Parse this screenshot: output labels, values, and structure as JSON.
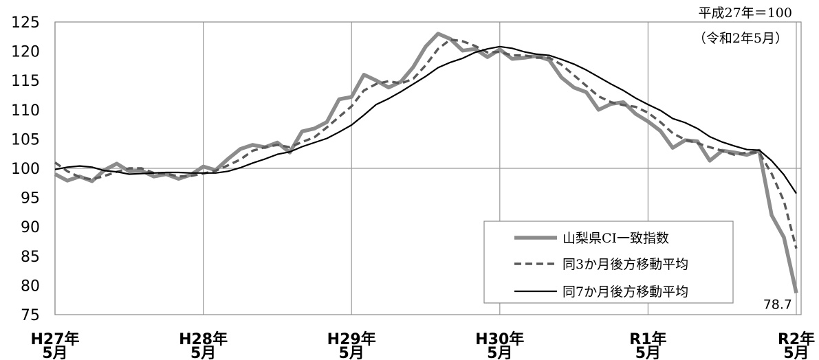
{
  "chart_data": {
    "type": "line",
    "x": [
      "H27年5月",
      "H27年6月",
      "H27年7月",
      "H27年8月",
      "H27年9月",
      "H27年10月",
      "H27年11月",
      "H27年12月",
      "H28年1月",
      "H28年2月",
      "H28年3月",
      "H28年4月",
      "H28年5月",
      "H28年6月",
      "H28年7月",
      "H28年8月",
      "H28年9月",
      "H28年10月",
      "H28年11月",
      "H28年12月",
      "H29年1月",
      "H29年2月",
      "H29年3月",
      "H29年4月",
      "H29年5月",
      "H29年6月",
      "H29年7月",
      "H29年8月",
      "H29年9月",
      "H29年10月",
      "H29年11月",
      "H29年12月",
      "H30年1月",
      "H30年2月",
      "H30年3月",
      "H30年4月",
      "H30年5月",
      "H30年6月",
      "H30年7月",
      "H30年8月",
      "H30年9月",
      "H30年10月",
      "H30年11月",
      "H30年12月",
      "H31年1月",
      "H31年2月",
      "H31年3月",
      "H31年4月",
      "R1年5月",
      "R1年6月",
      "R1年7月",
      "R1年8月",
      "R1年9月",
      "R1年10月",
      "R1年11月",
      "R1年12月",
      "R2年1月",
      "R2年2月",
      "R2年3月",
      "R2年4月",
      "R2年5月"
    ],
    "series": [
      {
        "name": "山梨県CI一致指数",
        "color": "#8c8c8c",
        "line_style": "solid",
        "values": [
          99.0,
          97.9,
          98.6,
          97.8,
          99.7,
          100.8,
          99.5,
          99.6,
          98.6,
          99.0,
          98.2,
          98.9,
          100.3,
          99.7,
          101.6,
          103.3,
          104.0,
          103.6,
          104.4,
          102.7,
          106.3,
          106.8,
          107.9,
          111.8,
          112.2,
          116.0,
          115.0,
          113.8,
          114.8,
          117.3,
          120.8,
          123.0,
          122.1,
          120.1,
          120.4,
          119.0,
          120.3,
          118.7,
          118.9,
          119.2,
          118.5,
          115.5,
          113.8,
          113.0,
          110.0,
          111.0,
          111.3,
          109.3,
          108.0,
          106.4,
          103.5,
          104.8,
          104.6,
          101.3,
          103.0,
          102.7,
          102.3,
          103.0,
          92.0,
          88.2,
          78.7
        ]
      },
      {
        "name": "同3か月後方移動平均",
        "color": "#595959",
        "line_style": "dashed",
        "values": [
          101.0,
          99.5,
          98.5,
          98.1,
          98.7,
          99.4,
          100.0,
          100.0,
          99.2,
          99.1,
          98.6,
          98.7,
          99.1,
          99.6,
          100.5,
          101.5,
          103.0,
          103.6,
          104.0,
          103.6,
          104.5,
          105.3,
          107.0,
          108.8,
          110.6,
          113.3,
          114.4,
          114.9,
          114.5,
          115.3,
          117.6,
          120.4,
          122.0,
          121.7,
          120.9,
          119.8,
          119.9,
          119.3,
          119.3,
          118.9,
          118.9,
          117.7,
          115.9,
          114.1,
          112.3,
          111.3,
          110.8,
          110.5,
          109.5,
          107.9,
          106.0,
          104.9,
          104.3,
          103.6,
          103.0,
          102.3,
          102.7,
          102.7,
          99.1,
          94.4,
          86.3
        ]
      },
      {
        "name": "同7か月後方移動平均",
        "color": "#000000",
        "line_style": "solid",
        "values": [
          99.8,
          100.2,
          100.4,
          100.2,
          99.6,
          99.4,
          99.0,
          99.1,
          99.2,
          99.3,
          99.3,
          99.2,
          99.2,
          99.2,
          99.5,
          100.1,
          100.9,
          101.6,
          102.4,
          102.8,
          103.7,
          104.4,
          105.1,
          106.2,
          107.4,
          109.1,
          110.9,
          111.9,
          113.1,
          114.4,
          115.7,
          117.2,
          118.1,
          118.8,
          119.8,
          120.4,
          120.8,
          120.5,
          119.9,
          119.5,
          119.3,
          118.6,
          117.8,
          116.8,
          115.6,
          114.4,
          113.3,
          112.0,
          110.9,
          109.9,
          108.5,
          107.8,
          106.8,
          105.4,
          104.5,
          103.8,
          103.2,
          103.1,
          101.3,
          98.9,
          95.7
        ]
      }
    ],
    "ylim": [
      75,
      125
    ],
    "yticks": [
      125,
      120,
      115,
      110,
      105,
      100,
      95,
      90,
      85,
      80,
      75
    ],
    "xticks": [
      {
        "x": "H27年5月",
        "year": "H27年",
        "month": "5月"
      },
      {
        "x": "H28年5月",
        "year": "H28年",
        "month": "5月"
      },
      {
        "x": "H29年5月",
        "year": "H29年",
        "month": "5月"
      },
      {
        "x": "H30年5月",
        "year": "H30年",
        "month": "5月"
      },
      {
        "x": "R1年5月",
        "year": "R1年",
        "month": "5月"
      },
      {
        "x": "R2年5月",
        "year": "R2年",
        "month": "5月"
      }
    ],
    "grid": {
      "vertical_at_x_ticks": true,
      "horizontal_at": [
        100
      ]
    },
    "legend": "bottom-right",
    "annotations": {
      "base": "平成27年＝100",
      "period": "（令和2年5月）"
    },
    "data_labels": [
      {
        "series": "山梨県CI一致指数",
        "x": "R2年5月",
        "text": "78.7"
      }
    ]
  }
}
